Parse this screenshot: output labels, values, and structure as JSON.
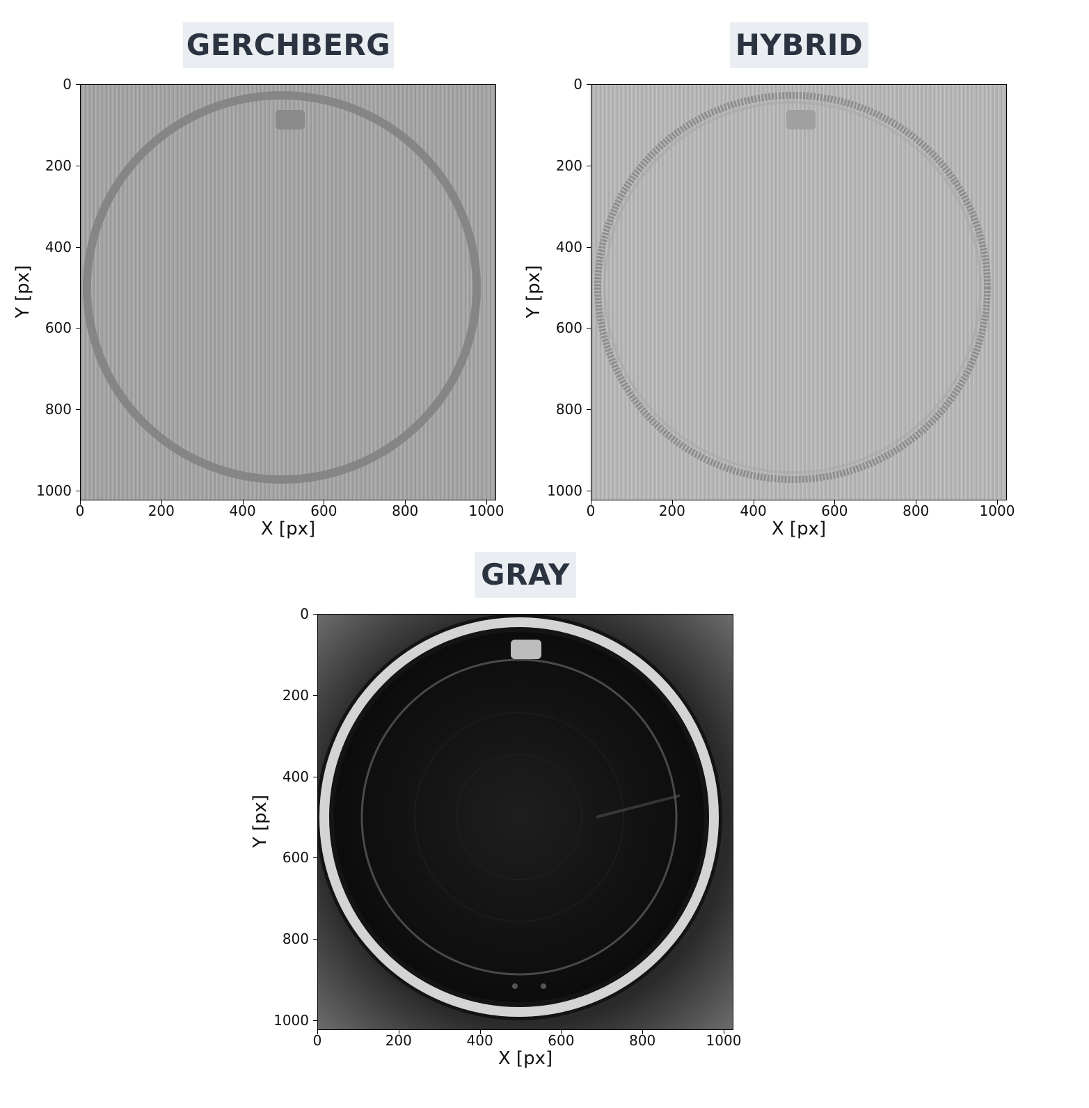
{
  "panels": [
    {
      "id": "gerchberg",
      "title": "GERCHBERG",
      "xlabel": "X [px]",
      "ylabel": "Y [px]",
      "style": "gerchberg"
    },
    {
      "id": "hybrid",
      "title": "HYBRID",
      "xlabel": "X [px]",
      "ylabel": "Y [px]",
      "style": "hybrid"
    },
    {
      "id": "gray",
      "title": "GRAY",
      "xlabel": "X [px]",
      "ylabel": "Y [px]",
      "style": "gray"
    }
  ],
  "axis_range": {
    "x": [
      0,
      1024
    ],
    "y": [
      0,
      1024
    ]
  },
  "x_ticks": [
    "0",
    "200",
    "400",
    "600",
    "800",
    "1000"
  ],
  "y_ticks": [
    "0",
    "200",
    "400",
    "600",
    "800",
    "1000"
  ],
  "colors": {
    "title_bg": "#eaeef3",
    "title_text": "#2b3240"
  }
}
